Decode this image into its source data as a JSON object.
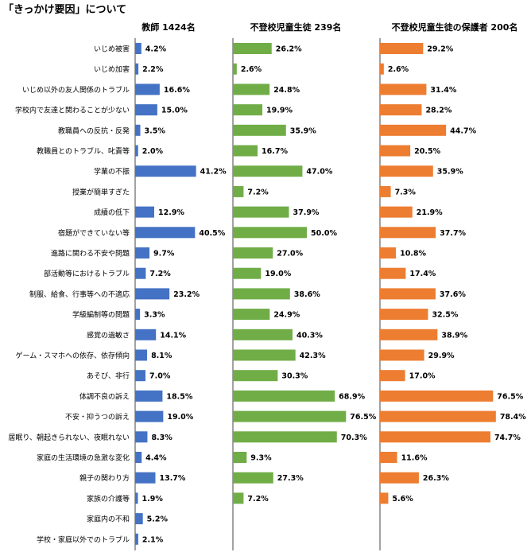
{
  "page_title": "「きっかけ要因」について",
  "colors": {
    "teachers": "#4472c4",
    "students": "#70ad47",
    "parents": "#ed7d31",
    "axis": "#444444"
  },
  "chart_data": {
    "type": "bar",
    "orientation": "horizontal",
    "title": "「きっかけ要因」について",
    "categories": [
      "いじめ被害",
      "いじめ加害",
      "いじめ以外の友人関係のトラブル",
      "学校内で友達と関わることが少ない",
      "教職員への反抗・反発",
      "教職員とのトラブル、叱責等",
      "学業の不振",
      "授業が簡単すぎた",
      "成績の低下",
      "宿題ができていない等",
      "進路に関わる不安や問題",
      "部活動等におけるトラブル",
      "制服、給食、行事等への不適応",
      "学級編制等の問題",
      "感覚の過敏さ",
      "ゲーム・スマホへの依存、依存傾向",
      "あそび、非行",
      "体調不良の訴え",
      "不安・抑うつの訴え",
      "居眠り、朝起きられない、夜眠れない",
      "家庭の生活環境の急激な変化",
      "親子の関わり方",
      "家族の介護等",
      "家庭内の不和",
      "学校・家庭以外でのトラブル"
    ],
    "series": [
      {
        "name": "教師 1424名",
        "values": [
          4.2,
          2.2,
          16.6,
          15.0,
          3.5,
          2.0,
          41.2,
          null,
          12.9,
          40.5,
          9.7,
          7.2,
          23.2,
          3.3,
          14.1,
          8.1,
          7.0,
          18.5,
          19.0,
          8.3,
          4.4,
          13.7,
          1.9,
          5.2,
          2.1
        ]
      },
      {
        "name": "不登校児童生徒 239名",
        "values": [
          26.2,
          2.6,
          24.8,
          19.9,
          35.9,
          16.7,
          47.0,
          7.2,
          37.9,
          50.0,
          27.0,
          19.0,
          38.6,
          24.9,
          40.3,
          42.3,
          30.3,
          68.9,
          76.5,
          70.3,
          9.3,
          27.3,
          7.2,
          null,
          null
        ]
      },
      {
        "name": "不登校児童生徒の保護者 200名",
        "values": [
          29.2,
          2.6,
          31.4,
          28.2,
          44.7,
          20.5,
          35.9,
          7.3,
          21.9,
          37.7,
          10.8,
          17.4,
          37.6,
          32.5,
          38.9,
          29.9,
          17.0,
          76.5,
          78.4,
          74.7,
          11.6,
          26.3,
          5.6,
          null,
          null
        ]
      }
    ],
    "value_format": "percent_1dp",
    "xlim": [
      0,
      100
    ],
    "grid": false,
    "legend": "none"
  }
}
